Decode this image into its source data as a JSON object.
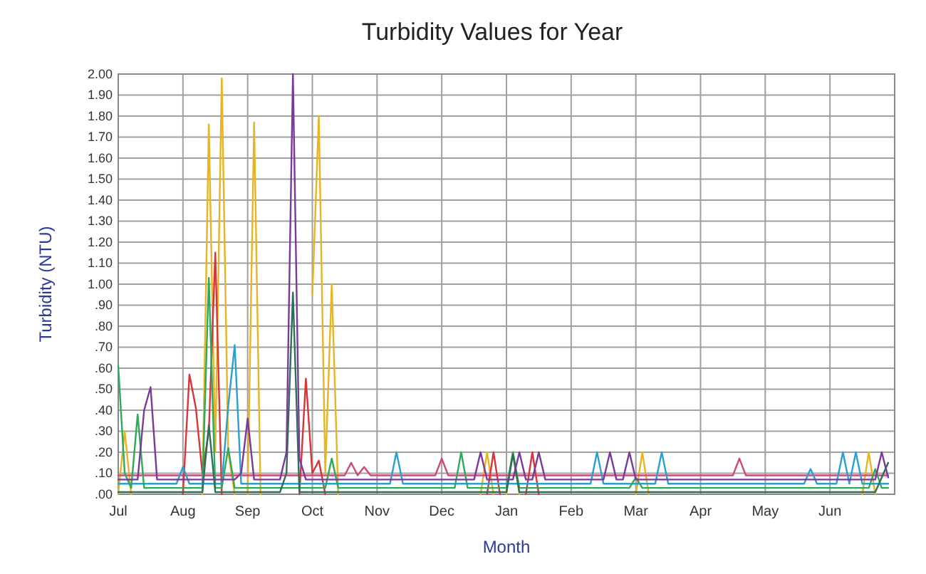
{
  "chart_data": {
    "type": "line",
    "title": "Turbidity Values for Year",
    "xlabel": "Month",
    "ylabel": "Turbidity (NTU)",
    "categories": [
      "Jul",
      null,
      null,
      null,
      null,
      null,
      null,
      null,
      null,
      null,
      "Aug",
      null,
      null,
      null,
      null,
      null,
      null,
      null,
      null,
      null,
      "Sep",
      null,
      null,
      null,
      null,
      null,
      null,
      null,
      null,
      null,
      "Oct",
      null,
      null,
      null,
      null,
      null,
      null,
      null,
      null,
      null,
      "Nov",
      null,
      null,
      null,
      null,
      null,
      null,
      null,
      null,
      null,
      "Dec",
      null,
      null,
      null,
      null,
      null,
      null,
      null,
      null,
      null,
      "Jan",
      null,
      null,
      null,
      null,
      null,
      null,
      null,
      null,
      null,
      "Feb",
      null,
      null,
      null,
      null,
      null,
      null,
      null,
      null,
      null,
      "Mar",
      null,
      null,
      null,
      null,
      null,
      null,
      null,
      null,
      null,
      "Apr",
      null,
      null,
      null,
      null,
      null,
      null,
      null,
      null,
      null,
      "May",
      null,
      null,
      null,
      null,
      null,
      null,
      null,
      null,
      null,
      "Jun",
      null,
      null,
      null,
      null,
      null,
      null,
      null,
      null,
      null
    ],
    "ylim": [
      0,
      2
    ],
    "yticks": [
      {
        "value": 0,
        "label": ".00"
      },
      {
        "value": 0.1,
        "label": ".10"
      },
      {
        "value": 0.2,
        "label": ".20"
      },
      {
        "value": 0.3,
        "label": ".30"
      },
      {
        "value": 0.4,
        "label": ".40"
      },
      {
        "value": 0.5,
        "label": ".50"
      },
      {
        "value": 0.6,
        "label": ".60"
      },
      {
        "value": 0.7,
        "label": ".70"
      },
      {
        "value": 0.8,
        "label": ".80"
      },
      {
        "value": 0.9,
        "label": ".90"
      },
      {
        "value": 1,
        "label": "1.00"
      },
      {
        "value": 1.1,
        "label": "1.10"
      },
      {
        "value": 1.2,
        "label": "1.20"
      },
      {
        "value": 1.3,
        "label": "1.30"
      },
      {
        "value": 1.4,
        "label": "1.40"
      },
      {
        "value": 1.5,
        "label": "1.50"
      },
      {
        "value": 1.6,
        "label": "1.60"
      },
      {
        "value": 1.7,
        "label": "1.70"
      },
      {
        "value": 1.8,
        "label": "1.80"
      },
      {
        "value": 1.9,
        "label": "1.90"
      },
      {
        "value": 2,
        "label": "2.00"
      }
    ],
    "grid": true,
    "marker": "none",
    "line_style": "solid",
    "series": [
      {
        "color": "#e8b422",
        "values": [
          0,
          0.3,
          0,
          null,
          null,
          null,
          null,
          null,
          null,
          null,
          null,
          null,
          null,
          0,
          1.76,
          0.2,
          1.98,
          0.2,
          0,
          null,
          0,
          1.77,
          0,
          null,
          null,
          null,
          null,
          null,
          null,
          null,
          0.95,
          1.8,
          0.1,
          1.0,
          0,
          null,
          null,
          null,
          null,
          null,
          null,
          null,
          null,
          null,
          null,
          null,
          null,
          null,
          null,
          null,
          null,
          null,
          null,
          null,
          null,
          null,
          0,
          0.2,
          0,
          null,
          0,
          0.2,
          0,
          null,
          null,
          null,
          null,
          null,
          null,
          null,
          null,
          null,
          null,
          null,
          null,
          null,
          null,
          null,
          null,
          null,
          0,
          0.2,
          0,
          null,
          null,
          null,
          null,
          null,
          null,
          null,
          null,
          null,
          null,
          null,
          null,
          null,
          null,
          null,
          null,
          null,
          null,
          null,
          null,
          null,
          null,
          null,
          null,
          null,
          null,
          null,
          null,
          null,
          null,
          null,
          null,
          0,
          0.2,
          0,
          null,
          null
        ]
      },
      {
        "color": "#d04878",
        "values": [
          0.09,
          0.09,
          0.09,
          0.09,
          0.09,
          0.09,
          0.09,
          0.09,
          0.09,
          0.09,
          0.09,
          0.09,
          0.09,
          0.09,
          0.09,
          0.09,
          0.09,
          0.09,
          0.09,
          0.09,
          0.09,
          0.09,
          0.09,
          0.09,
          0.09,
          0.09,
          0.09,
          0.09,
          0.09,
          0.09,
          0.09,
          0.09,
          0.09,
          0.09,
          0.09,
          0.09,
          0.15,
          0.09,
          0.13,
          0.09,
          0.09,
          0.09,
          0.09,
          0.09,
          0.09,
          0.09,
          0.09,
          0.09,
          0.09,
          0.09,
          0.17,
          0.09,
          0.09,
          0.09,
          0.09,
          0.09,
          0.09,
          0.09,
          0.09,
          0.09,
          0.09,
          0.09,
          0.09,
          0.09,
          0.09,
          0.09,
          0.09,
          0.09,
          0.09,
          0.09,
          0.09,
          0.09,
          0.09,
          0.09,
          0.09,
          0.09,
          0.09,
          0.09,
          0.09,
          0.09,
          0.09,
          0.09,
          0.09,
          0.09,
          0.09,
          0.09,
          0.09,
          0.09,
          0.09,
          0.09,
          0.09,
          0.09,
          0.09,
          0.09,
          0.09,
          0.09,
          0.17,
          0.09,
          0.09,
          0.09,
          0.09,
          0.09,
          0.09,
          0.09,
          0.09,
          0.09,
          0.09,
          0.09,
          0.09,
          0.09,
          0.09,
          0.09,
          0.09,
          0.09,
          0.09,
          0.09,
          0.09,
          0.09,
          0.09,
          0.09
        ]
      },
      {
        "color": "#d8343c",
        "values": [
          null,
          null,
          null,
          null,
          null,
          null,
          null,
          null,
          null,
          null,
          0,
          0.57,
          0.41,
          0.1,
          0.3,
          1.15,
          0,
          null,
          null,
          null,
          null,
          null,
          null,
          null,
          null,
          null,
          null,
          null,
          0,
          0.55,
          0.1,
          0.16,
          0,
          null,
          null,
          null,
          null,
          null,
          null,
          null,
          null,
          null,
          null,
          null,
          null,
          null,
          null,
          null,
          null,
          null,
          null,
          null,
          null,
          null,
          null,
          null,
          null,
          0,
          0.2,
          0,
          null,
          null,
          null,
          0,
          0.2,
          0,
          null,
          null,
          null,
          null,
          null,
          null,
          null,
          null,
          null,
          null,
          null,
          null,
          null,
          null,
          null,
          null,
          null,
          null,
          null,
          null,
          null,
          null,
          null,
          null,
          null,
          null,
          null,
          null,
          null,
          null,
          null,
          null,
          null,
          null,
          null,
          null,
          null,
          null,
          null,
          null,
          null,
          null,
          null,
          null,
          null,
          null,
          null,
          null,
          null,
          null,
          null,
          null,
          null,
          null
        ]
      },
      {
        "color": "#2aa0d0",
        "values": [
          0.05,
          0.05,
          0.05,
          0.05,
          0.05,
          0.05,
          0.05,
          0.05,
          0.05,
          0.05,
          0.13,
          0.05,
          0.05,
          0.05,
          0.05,
          0.05,
          0.05,
          0.42,
          0.71,
          0.05,
          0.05,
          0.05,
          0.05,
          0.05,
          0.05,
          0.05,
          0.05,
          0.05,
          0.05,
          0.05,
          0.05,
          0.05,
          0.05,
          0.05,
          0.05,
          0.05,
          0.05,
          0.05,
          0.05,
          0.05,
          0.05,
          0.05,
          0.05,
          0.2,
          0.05,
          0.05,
          0.05,
          0.05,
          0.05,
          0.05,
          0.05,
          0.05,
          0.05,
          0.05,
          0.05,
          0.05,
          0.05,
          0.05,
          0.05,
          0.05,
          0.05,
          0.05,
          0.05,
          0.05,
          0.05,
          0.05,
          0.05,
          0.05,
          0.05,
          0.05,
          0.05,
          0.05,
          0.05,
          0.05,
          0.2,
          0.05,
          0.05,
          0.05,
          0.05,
          0.05,
          0.05,
          0.05,
          0.05,
          0.05,
          0.2,
          0.05,
          0.05,
          0.05,
          0.05,
          0.05,
          0.05,
          0.05,
          0.05,
          0.05,
          0.05,
          0.05,
          0.05,
          0.05,
          0.05,
          0.05,
          0.05,
          0.05,
          0.05,
          0.05,
          0.05,
          0.05,
          0.05,
          0.12,
          0.05,
          0.05,
          0.05,
          0.05,
          0.2,
          0.05,
          0.2,
          0.05,
          0.05,
          0.05,
          0.05,
          0.05
        ]
      },
      {
        "color": "#2eaa5c",
        "values": [
          0.61,
          0.1,
          0.03,
          0.38,
          0.03,
          0.03,
          0.03,
          0.03,
          0.03,
          0.03,
          0.03,
          0.03,
          0.03,
          0.03,
          1.03,
          0.03,
          0.03,
          0.22,
          0.03,
          0.03,
          0.03,
          0.03,
          0.03,
          0.03,
          0.03,
          0.03,
          0.03,
          0.03,
          0.03,
          0.03,
          0.03,
          0.03,
          0.03,
          0.17,
          0.03,
          0.03,
          0.03,
          0.03,
          0.03,
          0.03,
          0.03,
          0.03,
          0.03,
          0.03,
          0.03,
          0.03,
          0.03,
          0.03,
          0.03,
          0.03,
          0.03,
          0.03,
          0.03,
          0.2,
          0.03,
          0.03,
          0.03,
          0.03,
          0.03,
          0.03,
          0.03,
          0.2,
          0.03,
          0.03,
          0.03,
          0.03,
          0.03,
          0.03,
          0.03,
          0.03,
          0.03,
          0.03,
          0.03,
          0.03,
          0.03,
          0.03,
          0.03,
          0.03,
          0.03,
          0.03,
          0.08,
          0.03,
          0.03,
          0.03,
          0.03,
          0.03,
          0.03,
          0.03,
          0.03,
          0.03,
          0.03,
          0.03,
          0.03,
          0.03,
          0.03,
          0.03,
          0.03,
          0.03,
          0.03,
          0.03,
          0.03,
          0.03,
          0.03,
          0.03,
          0.03,
          0.03,
          0.03,
          0.03,
          0.03,
          0.03,
          0.03,
          0.03,
          0.03,
          0.03,
          0.03,
          0.03,
          0.03,
          0.12,
          0.03,
          0.03
        ]
      },
      {
        "color": "#2f6f5a",
        "values": [
          0.01,
          0.01,
          0.01,
          0.01,
          0.01,
          0.01,
          0.01,
          0.01,
          0.01,
          0.01,
          0.01,
          0.01,
          0.01,
          0.01,
          0.33,
          0.01,
          0.01,
          0.01,
          0.01,
          0.01,
          0.01,
          0.01,
          0.01,
          0.01,
          0.01,
          0.01,
          0.1,
          0.96,
          0.01,
          0.01,
          0.01,
          0.01,
          0.01,
          0.01,
          0.01,
          0.01,
          0.01,
          0.01,
          0.01,
          0.01,
          0.01,
          0.01,
          0.01,
          0.01,
          0.01,
          0.01,
          0.01,
          0.01,
          0.01,
          0.01,
          0.01,
          0.01,
          0.01,
          0.01,
          0.01,
          0.01,
          0.01,
          0.01,
          0.01,
          0.01,
          0.01,
          0.19,
          0.01,
          0.01,
          0.01,
          0.01,
          0.01,
          0.01,
          0.01,
          0.01,
          0.01,
          0.01,
          0.01,
          0.01,
          0.01,
          0.01,
          0.01,
          0.01,
          0.01,
          0.01,
          0.01,
          0.01,
          0.01,
          0.01,
          0.01,
          0.01,
          0.01,
          0.01,
          0.01,
          0.01,
          0.01,
          0.01,
          0.01,
          0.01,
          0.01,
          0.01,
          0.01,
          0.01,
          0.01,
          0.01,
          0.01,
          0.01,
          0.01,
          0.01,
          0.01,
          0.01,
          0.01,
          0.01,
          0.01,
          0.01,
          0.01,
          0.01,
          0.01,
          0.01,
          0.01,
          0.01,
          0.01,
          0.01,
          0.08,
          0.15
        ]
      },
      {
        "color": "#7a3a9a",
        "values": [
          0.07,
          0.07,
          0.07,
          0.07,
          0.4,
          0.51,
          0.07,
          0.07,
          0.07,
          0.07,
          0.07,
          0.07,
          0.07,
          0.07,
          0.07,
          0.07,
          0.07,
          0.07,
          0.07,
          0.1,
          0.36,
          0.07,
          0.07,
          0.07,
          0.07,
          0.07,
          0.2,
          2.0,
          0.17,
          0.07,
          0.07,
          0.07,
          0.07,
          0.07,
          0.07,
          0.07,
          0.07,
          0.07,
          0.07,
          0.07,
          0.07,
          0.07,
          0.07,
          0.07,
          0.07,
          0.07,
          0.07,
          0.07,
          0.07,
          0.07,
          0.07,
          0.07,
          0.07,
          0.07,
          0.07,
          0.07,
          0.2,
          0.07,
          0.07,
          0.07,
          0.07,
          0.07,
          0.2,
          0.07,
          0.07,
          0.2,
          0.07,
          0.07,
          0.07,
          0.07,
          0.07,
          0.07,
          0.07,
          0.07,
          0.07,
          0.07,
          0.2,
          0.07,
          0.07,
          0.2,
          0.07,
          0.07,
          0.07,
          0.07,
          0.07,
          0.07,
          0.07,
          0.07,
          0.07,
          0.07,
          0.07,
          0.07,
          0.07,
          0.07,
          0.07,
          0.07,
          0.07,
          0.07,
          0.07,
          0.07,
          0.07,
          0.07,
          0.07,
          0.07,
          0.07,
          0.07,
          0.07,
          0.07,
          0.07,
          0.07,
          0.07,
          0.07,
          0.07,
          0.07,
          0.07,
          0.07,
          0.07,
          0.07,
          0.2,
          0.08
        ]
      }
    ]
  }
}
